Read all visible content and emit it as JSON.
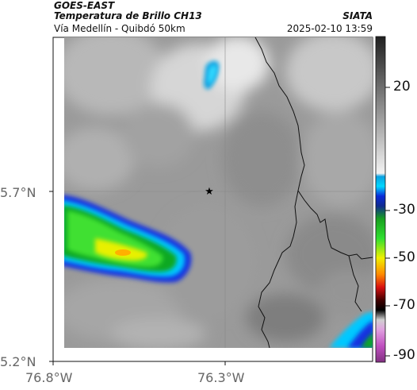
{
  "header": {
    "agency": "GOES-EAST",
    "product": "Temperatura de Brillo CH13",
    "region": "Vía Medellín - Quibdó 50km",
    "source": "SIATA",
    "timestamp": "2025-02-10 13:59"
  },
  "axes": {
    "latitude_labels": [
      "5.7°N",
      "5.2°N"
    ],
    "longitude_labels": [
      "76.8°W",
      "76.3°W"
    ]
  },
  "colorbar": {
    "tick_labels": [
      "20",
      "-30",
      "-50",
      "-70",
      "-90"
    ],
    "colors": {
      "cyan": "#00c8ff",
      "blue": "#0a2ad8",
      "green": "#22c81e",
      "yellow": "#f0f000",
      "orange": "#ff7a00",
      "red": "#d81010",
      "magenta": "#c050c0"
    }
  },
  "map": {
    "marker_icon": "star-icon",
    "colors": {
      "border_line": "#111111",
      "gridline": "#8a8a8a"
    }
  }
}
